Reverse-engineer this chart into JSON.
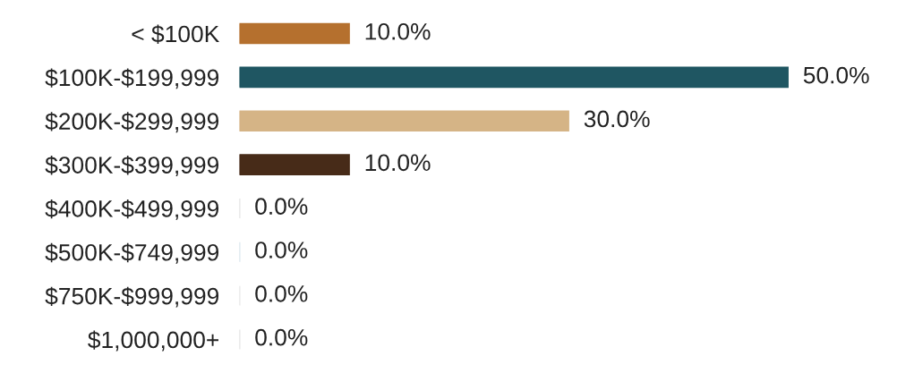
{
  "chart_data": {
    "type": "bar",
    "orientation": "horizontal",
    "categories": [
      "< $100K",
      "$100K-$199,999",
      "$200K-$299,999",
      "$300K-$399,999",
      "$400K-$499,999",
      "$500K-$749,999",
      "$750K-$999,999",
      "$1,000,000+"
    ],
    "values": [
      10.0,
      50.0,
      30.0,
      10.0,
      0.0,
      0.0,
      0.0,
      0.0
    ],
    "colors": [
      "#b5702e",
      "#1f5662",
      "#d5b486",
      "#472b18",
      "#d8d8d8",
      "#c9dbe6",
      "#dcdcdc",
      "#d8d8d8"
    ],
    "value_labels": [
      "10.0%",
      "50.0%",
      "30.0%",
      "10.0%",
      "0.0%",
      "0.0%",
      "0.0%",
      "0.0%"
    ],
    "grid": false,
    "legend": false
  }
}
